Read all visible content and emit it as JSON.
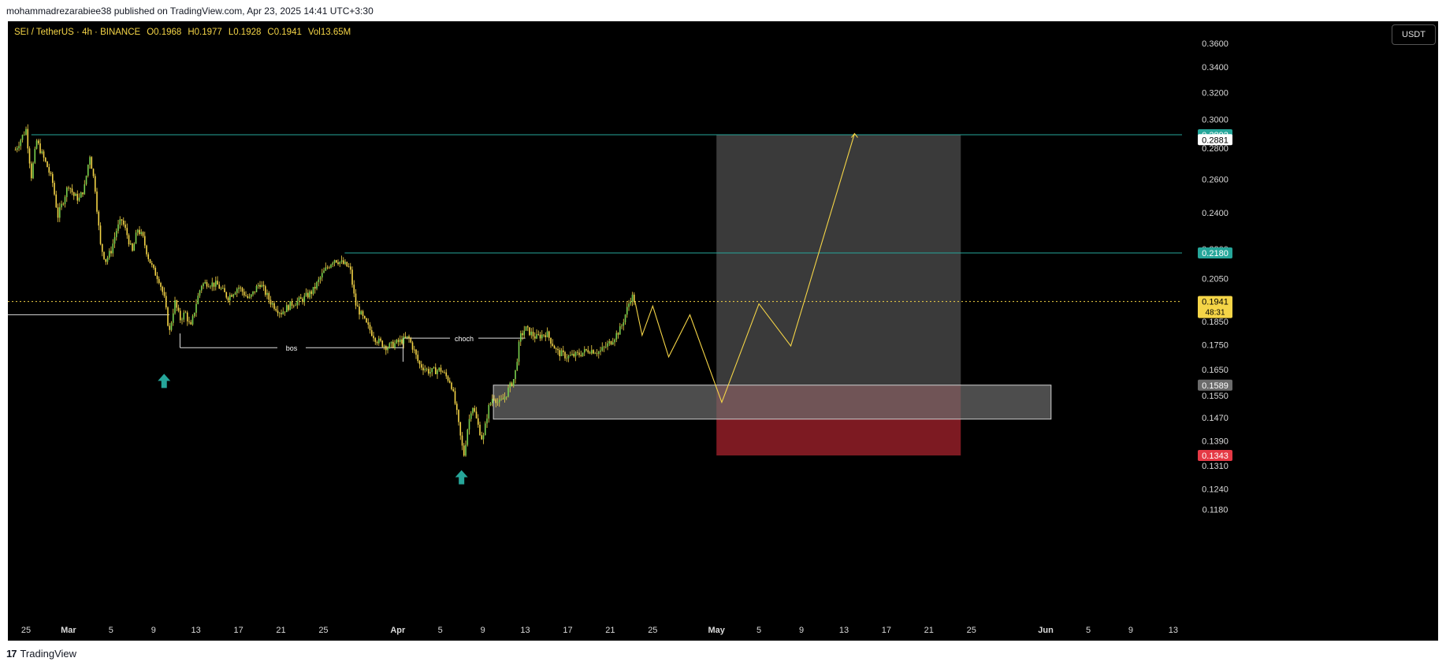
{
  "header": {
    "published": "mohammadrezarabiee38 published on TradingView.com, Apr 23, 2025 14:41 UTC+3:30"
  },
  "footer": {
    "brand": "TradingView",
    "brand_mark": "17"
  },
  "legend": {
    "symbol": "SEI / TetherUS · 4h · BINANCE",
    "open": "O0.1968",
    "high": "H0.1977",
    "low": "L0.1928",
    "close": "C0.1941",
    "volume": "Vol13.65M"
  },
  "currency_button": "USDT",
  "colors": {
    "background": "#000000",
    "candle": "#f5d547",
    "candle_up_body": "#7bd14e",
    "level_line": "#26a69a",
    "projection": "#f5d547",
    "current_price": "#f5d547",
    "zone": "#6b6b6b",
    "target_box": "#3a3a3a",
    "stop_box": "#7d1a22"
  },
  "chart_data": {
    "type": "line",
    "title": "",
    "symbol": "SEI / TetherUS",
    "interval": "4h",
    "exchange": "BINANCE",
    "xlabel": "",
    "ylabel": "",
    "ylim": [
      0.1145,
      0.365
    ],
    "y_scale": "log",
    "grid": false,
    "y_ticks": [
      0.36,
      0.34,
      0.32,
      0.3,
      0.28,
      0.26,
      0.24,
      0.22,
      0.205,
      0.185,
      0.175,
      0.165,
      0.155,
      0.147,
      0.139,
      0.131,
      0.124,
      0.118
    ],
    "y_tick_labels": [
      "0.3600",
      "0.3400",
      "0.3200",
      "0.3000",
      "0.2800",
      "0.2600",
      "0.2400",
      "0.2200",
      "0.2050",
      "0.1850",
      "0.1750",
      "0.1650",
      "0.1550",
      "0.1470",
      "0.1390",
      "0.1310",
      "0.1240",
      "0.1180"
    ],
    "x_axis_labels": [
      {
        "label": "25",
        "date": "2025-02-25"
      },
      {
        "label": "Mar",
        "date": "2025-03-01"
      },
      {
        "label": "5",
        "date": "2025-03-05"
      },
      {
        "label": "9",
        "date": "2025-03-09"
      },
      {
        "label": "13",
        "date": "2025-03-13"
      },
      {
        "label": "17",
        "date": "2025-03-17"
      },
      {
        "label": "21",
        "date": "2025-03-21"
      },
      {
        "label": "25",
        "date": "2025-03-25"
      },
      {
        "label": "Apr",
        "date": "2025-04-01"
      },
      {
        "label": "5",
        "date": "2025-04-05"
      },
      {
        "label": "9",
        "date": "2025-04-09"
      },
      {
        "label": "13",
        "date": "2025-04-13"
      },
      {
        "label": "17",
        "date": "2025-04-17"
      },
      {
        "label": "21",
        "date": "2025-04-21"
      },
      {
        "label": "25",
        "date": "2025-04-25"
      },
      {
        "label": "May",
        "date": "2025-05-01"
      },
      {
        "label": "5",
        "date": "2025-05-05"
      },
      {
        "label": "9",
        "date": "2025-05-09"
      },
      {
        "label": "13",
        "date": "2025-05-13"
      },
      {
        "label": "17",
        "date": "2025-05-17"
      },
      {
        "label": "21",
        "date": "2025-05-21"
      },
      {
        "label": "25",
        "date": "2025-05-25"
      },
      {
        "label": "Jun",
        "date": "2025-06-01"
      },
      {
        "label": "5",
        "date": "2025-06-05"
      },
      {
        "label": "9",
        "date": "2025-06-09"
      },
      {
        "label": "13",
        "date": "2025-06-13"
      }
    ],
    "price_path": [
      [
        "2025-02-24T00:00",
        0.279
      ],
      [
        "2025-02-24T12:00",
        0.286
      ],
      [
        "2025-02-25T00:00",
        0.293
      ],
      [
        "2025-02-25T12:00",
        0.262
      ],
      [
        "2025-02-26T00:00",
        0.285
      ],
      [
        "2025-02-26T12:00",
        0.276
      ],
      [
        "2025-02-27T00:00",
        0.268
      ],
      [
        "2025-02-27T12:00",
        0.258
      ],
      [
        "2025-02-28T00:00",
        0.238
      ],
      [
        "2025-02-28T12:00",
        0.247
      ],
      [
        "2025-03-01T00:00",
        0.257
      ],
      [
        "2025-03-01T12:00",
        0.25
      ],
      [
        "2025-03-02T00:00",
        0.248
      ],
      [
        "2025-03-02T12:00",
        0.255
      ],
      [
        "2025-03-03T00:00",
        0.276
      ],
      [
        "2025-03-03T12:00",
        0.255
      ],
      [
        "2025-03-04T00:00",
        0.222
      ],
      [
        "2025-03-04T12:00",
        0.214
      ],
      [
        "2025-03-05T00:00",
        0.219
      ],
      [
        "2025-03-05T12:00",
        0.23
      ],
      [
        "2025-03-06T00:00",
        0.236
      ],
      [
        "2025-03-06T12:00",
        0.228
      ],
      [
        "2025-03-07T00:00",
        0.218
      ],
      [
        "2025-03-07T12:00",
        0.231
      ],
      [
        "2025-03-08T00:00",
        0.226
      ],
      [
        "2025-03-08T12:00",
        0.216
      ],
      [
        "2025-03-09T00:00",
        0.209
      ],
      [
        "2025-03-09T12:00",
        0.205
      ],
      [
        "2025-03-10T00:00",
        0.196
      ],
      [
        "2025-03-10T12:00",
        0.18
      ],
      [
        "2025-03-11T00:00",
        0.194
      ],
      [
        "2025-03-11T12:00",
        0.186
      ],
      [
        "2025-03-12T00:00",
        0.189
      ],
      [
        "2025-03-12T12:00",
        0.182
      ],
      [
        "2025-03-13T00:00",
        0.193
      ],
      [
        "2025-03-13T12:00",
        0.202
      ],
      [
        "2025-03-14T00:00",
        0.203
      ],
      [
        "2025-03-15T00:00",
        0.202
      ],
      [
        "2025-03-16T00:00",
        0.196
      ],
      [
        "2025-03-17T00:00",
        0.201
      ],
      [
        "2025-03-18T00:00",
        0.195
      ],
      [
        "2025-03-19T00:00",
        0.203
      ],
      [
        "2025-03-20T00:00",
        0.194
      ],
      [
        "2025-03-21T00:00",
        0.189
      ],
      [
        "2025-03-22T00:00",
        0.193
      ],
      [
        "2025-03-23T00:00",
        0.195
      ],
      [
        "2025-03-24T00:00",
        0.199
      ],
      [
        "2025-03-25T00:00",
        0.208
      ],
      [
        "2025-03-26T00:00",
        0.215
      ],
      [
        "2025-03-27T00:00",
        0.212
      ],
      [
        "2025-03-27T12:00",
        0.21
      ],
      [
        "2025-03-28T00:00",
        0.193
      ],
      [
        "2025-03-29T00:00",
        0.184
      ],
      [
        "2025-03-30T00:00",
        0.177
      ],
      [
        "2025-03-31T00:00",
        0.174
      ],
      [
        "2025-04-01T00:00",
        0.176
      ],
      [
        "2025-04-02T00:00",
        0.178
      ],
      [
        "2025-04-02T12:00",
        0.173
      ],
      [
        "2025-04-03T00:00",
        0.167
      ],
      [
        "2025-04-04T00:00",
        0.164
      ],
      [
        "2025-04-05T00:00",
        0.165
      ],
      [
        "2025-04-06T00:00",
        0.16
      ],
      [
        "2025-04-06T12:00",
        0.15
      ],
      [
        "2025-04-07T00:00",
        0.138
      ],
      [
        "2025-04-07T06:00",
        0.1343
      ],
      [
        "2025-04-07T12:00",
        0.142
      ],
      [
        "2025-04-08T00:00",
        0.152
      ],
      [
        "2025-04-08T12:00",
        0.145
      ],
      [
        "2025-04-09T00:00",
        0.139
      ],
      [
        "2025-04-09T12:00",
        0.15
      ],
      [
        "2025-04-10T00:00",
        0.155
      ],
      [
        "2025-04-10T12:00",
        0.152
      ],
      [
        "2025-04-11T00:00",
        0.154
      ],
      [
        "2025-04-12T00:00",
        0.162
      ],
      [
        "2025-04-12T12:00",
        0.178
      ],
      [
        "2025-04-13T00:00",
        0.182
      ],
      [
        "2025-04-14T00:00",
        0.178
      ],
      [
        "2025-04-15T00:00",
        0.18
      ],
      [
        "2025-04-16T00:00",
        0.172
      ],
      [
        "2025-04-17T00:00",
        0.17
      ],
      [
        "2025-04-18T00:00",
        0.171
      ],
      [
        "2025-04-19T00:00",
        0.173
      ],
      [
        "2025-04-20T00:00",
        0.172
      ],
      [
        "2025-04-21T00:00",
        0.176
      ],
      [
        "2025-04-22T00:00",
        0.182
      ],
      [
        "2025-04-23T00:00",
        0.197
      ],
      [
        "2025-04-23T08:00",
        0.1941
      ]
    ],
    "projection_path": [
      [
        "2025-04-23T08:00",
        0.1941
      ],
      [
        "2025-04-24T00:00",
        0.179
      ],
      [
        "2025-04-25T00:00",
        0.192
      ],
      [
        "2025-04-26T12:00",
        0.17
      ],
      [
        "2025-04-28T12:00",
        0.188
      ],
      [
        "2025-05-01T12:00",
        0.1525
      ],
      [
        "2025-05-05T00:00",
        0.193
      ],
      [
        "2025-05-08T00:00",
        0.1745
      ],
      [
        "2025-05-14T00:00",
        0.29
      ]
    ],
    "levels": [
      {
        "name": "target",
        "price": 0.2892,
        "label": "0.2892",
        "start": "2025-02-25T12:00"
      },
      {
        "name": "resistance",
        "price": 0.218,
        "label": "0.2180",
        "start": "2025-03-27T00:00"
      },
      {
        "name": "current",
        "price": 0.1941,
        "label": "0.1941",
        "countdown": "48:31"
      }
    ],
    "price_tags": [
      {
        "name": "box-top",
        "price": 0.2881,
        "label": "0.2881"
      },
      {
        "name": "zone-top",
        "price": 0.1589,
        "label": "0.1589"
      },
      {
        "name": "stop",
        "price": 0.1343,
        "label": "0.1343"
      }
    ],
    "annotations": [
      {
        "text": "bos",
        "price": 0.1738,
        "x_start": "2025-03-11T12:00",
        "x_end": "2025-04-01T12:00"
      },
      {
        "text": "choch",
        "price": 0.1778,
        "x_start": "2025-04-01T12:00",
        "x_end": "2025-04-13T00:00"
      }
    ],
    "reference_line": {
      "price": 0.188,
      "x_end": "2025-03-10T12:00"
    },
    "arrows": [
      {
        "date": "2025-03-10T00:00",
        "price": 0.1605,
        "direction": "up"
      },
      {
        "date": "2025-04-07T00:00",
        "price": 0.1275,
        "direction": "up"
      }
    ],
    "demand_zone": {
      "top": 0.1589,
      "bottom": 0.1465,
      "start": "2025-04-10T00:00",
      "end": "2025-06-01T12:00"
    },
    "target_box": {
      "top": 0.2892,
      "bottom": 0.1343,
      "start": "2025-05-01T00:00",
      "end": "2025-05-24T00:00"
    }
  }
}
